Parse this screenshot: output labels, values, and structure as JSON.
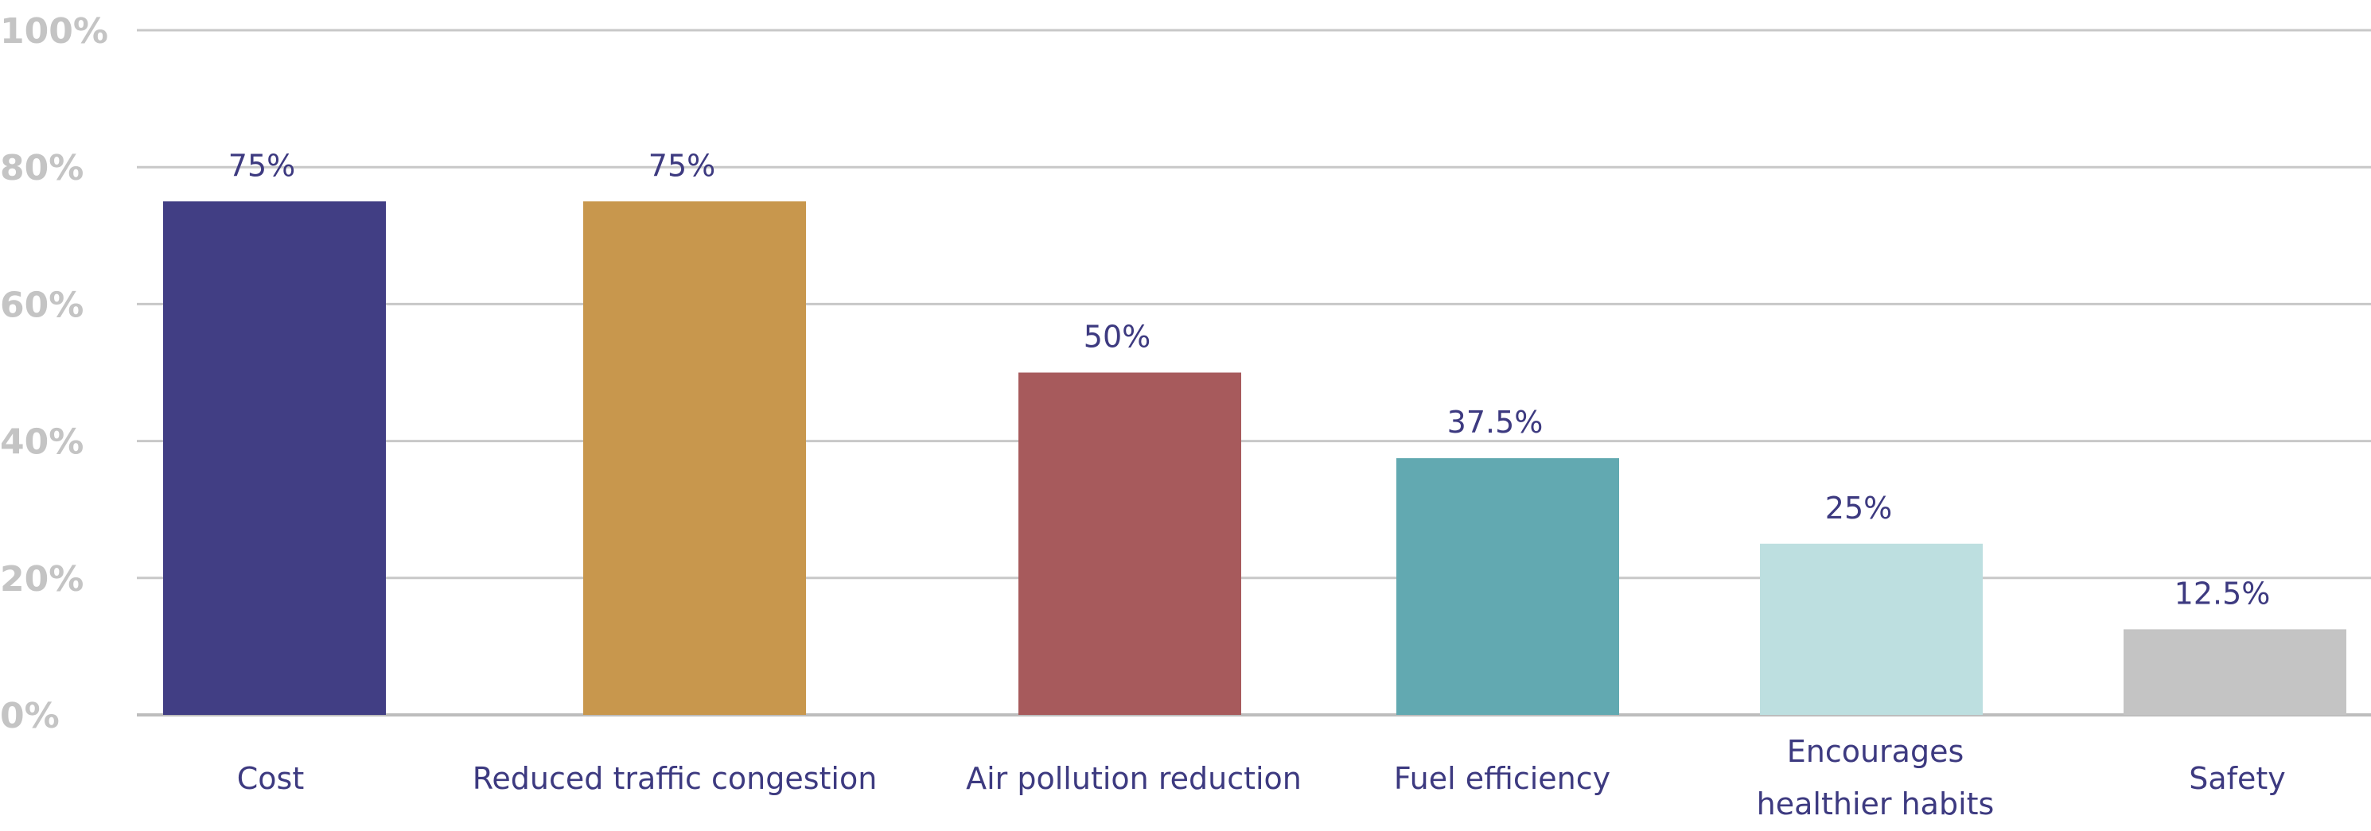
{
  "chart_data": {
    "type": "bar",
    "categories": [
      [
        "Cost"
      ],
      [
        "Reduced traffic congestion"
      ],
      [
        "Air pollution reduction"
      ],
      [
        "Fuel efficiency"
      ],
      [
        "Encourages",
        "healthier habits"
      ],
      [
        "Safety"
      ]
    ],
    "values": [
      75,
      75,
      50,
      37.5,
      25,
      12.5
    ],
    "data_labels": [
      "75%",
      "75%",
      "50%",
      "37.5%",
      "25%",
      "12.5%"
    ],
    "colors": [
      "#413e84",
      "#c8974d",
      "#a75a5c",
      "#62a9b1",
      "#bddfe0",
      "#c4c4c4"
    ],
    "yticks": [
      0,
      20,
      40,
      60,
      80,
      100
    ],
    "ytick_labels": [
      "0%",
      "20%",
      "40%",
      "60%",
      "80%",
      "100%"
    ],
    "ylim": [
      0,
      100
    ],
    "grid": true,
    "title": "",
    "xlabel": "",
    "ylabel": ""
  }
}
